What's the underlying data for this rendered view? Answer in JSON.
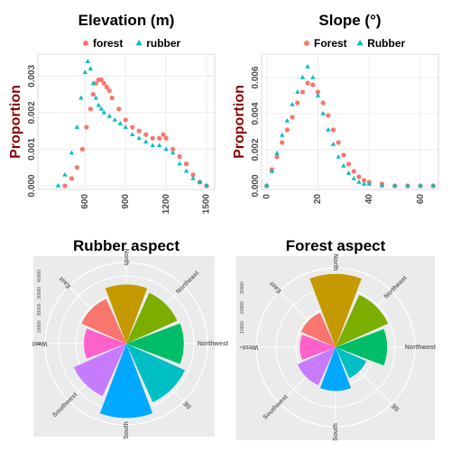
{
  "chart_data": [
    {
      "type": "scatter",
      "title": "Elevation (m)",
      "ylabel": "Proportion",
      "xlabel": "",
      "xlim": [
        250,
        1560
      ],
      "ylim": [
        -0.0001,
        0.0036
      ],
      "xticks": [
        600,
        900,
        1200,
        1500
      ],
      "yticks": [
        0.0,
        0.001,
        0.002,
        0.003
      ],
      "ytick_labels": [
        "0.000",
        "0.001",
        "0.002",
        "0.003"
      ],
      "grid": true,
      "legend": "top",
      "series": [
        {
          "name": "forest",
          "marker": "circle",
          "color": "#f8766d",
          "x": [
            450,
            500,
            540,
            580,
            610,
            640,
            660,
            680,
            700,
            720,
            740,
            760,
            780,
            800,
            850,
            900,
            950,
            1000,
            1050,
            1100,
            1150,
            1180,
            1200,
            1250,
            1300,
            1350,
            1400,
            1450,
            1500
          ],
          "y": [
            0.0,
            0.0002,
            0.0005,
            0.001,
            0.0016,
            0.0021,
            0.0025,
            0.0028,
            0.0029,
            0.0029,
            0.0028,
            0.0027,
            0.0026,
            0.0024,
            0.0021,
            0.0018,
            0.0016,
            0.0015,
            0.0014,
            0.0013,
            0.0013,
            0.0014,
            0.0013,
            0.001,
            0.0008,
            0.0006,
            0.0003,
            0.0001,
            0.0
          ]
        },
        {
          "name": "rubber",
          "marker": "triangle",
          "color": "#00bfc4",
          "x": [
            400,
            450,
            500,
            540,
            570,
            600,
            620,
            640,
            660,
            680,
            700,
            720,
            740,
            780,
            820,
            860,
            900,
            950,
            1000,
            1050,
            1100,
            1150,
            1200,
            1250,
            1300,
            1350,
            1400,
            1450,
            1500
          ],
          "y": [
            0.0,
            0.0003,
            0.0009,
            0.0016,
            0.0024,
            0.0031,
            0.0034,
            0.0032,
            0.0028,
            0.0024,
            0.0022,
            0.0021,
            0.002,
            0.0019,
            0.0018,
            0.0017,
            0.0016,
            0.0014,
            0.0013,
            0.0012,
            0.0011,
            0.0011,
            0.001,
            0.0009,
            0.0006,
            0.0004,
            0.0002,
            0.0001,
            0.0
          ]
        }
      ]
    },
    {
      "type": "scatter",
      "title": "Slope (°)",
      "ylabel": "Proportion",
      "xlabel": "",
      "xlim": [
        -2,
        67
      ],
      "ylim": [
        -0.0002,
        0.0073
      ],
      "xticks": [
        0,
        20,
        40,
        60
      ],
      "yticks": [
        0.0,
        0.002,
        0.004,
        0.006
      ],
      "ytick_labels": [
        "0.000",
        "0.002",
        "0.004",
        "0.006"
      ],
      "grid": true,
      "legend": "top",
      "series": [
        {
          "name": "Forest",
          "marker": "circle",
          "color": "#f8766d",
          "x": [
            0,
            2,
            4,
            6,
            8,
            10,
            12,
            14,
            16,
            18,
            20,
            22,
            24,
            26,
            28,
            30,
            32,
            34,
            36,
            38,
            40,
            45,
            50,
            55,
            60,
            65
          ],
          "y": [
            0.0,
            0.0009,
            0.0016,
            0.0024,
            0.0031,
            0.0038,
            0.0046,
            0.0052,
            0.0057,
            0.0056,
            0.0052,
            0.0046,
            0.0039,
            0.0031,
            0.0024,
            0.0017,
            0.0012,
            0.0008,
            0.0005,
            0.0003,
            0.0002,
            0.0001,
            0.0,
            0.0,
            0.0,
            0.0
          ]
        },
        {
          "name": "Rubber",
          "marker": "triangle",
          "color": "#00bfc4",
          "x": [
            0,
            2,
            4,
            6,
            8,
            10,
            12,
            14,
            16,
            18,
            20,
            22,
            24,
            26,
            28,
            30,
            32,
            34,
            36,
            38,
            40,
            45,
            50,
            55,
            60,
            65
          ],
          "y": [
            0.0,
            0.0008,
            0.0018,
            0.0028,
            0.0036,
            0.0045,
            0.0052,
            0.006,
            0.0066,
            0.006,
            0.005,
            0.004,
            0.0031,
            0.0023,
            0.0016,
            0.0011,
            0.0007,
            0.0004,
            0.0002,
            0.0001,
            0.0001,
            0.0,
            0.0,
            0.0,
            0.0,
            0.0
          ]
        }
      ]
    },
    {
      "type": "bar",
      "subtype": "polar",
      "title": "Rubber aspect",
      "categories": [
        "North",
        "Northeast",
        "Northwest",
        "SE",
        "South",
        "Southwest",
        "West",
        "East"
      ],
      "values": [
        35000,
        33000,
        34000,
        38000,
        44000,
        34000,
        25000,
        29000
      ],
      "colors": [
        "#c49a00",
        "#7cae00",
        "#00be67",
        "#00bfc4",
        "#00a9ff",
        "#c77cff",
        "#ff61cc",
        "#f8766d"
      ],
      "rticks": [
        0,
        10000,
        20000,
        30000,
        40000
      ],
      "rtick_labels": [
        "0",
        "10000",
        "20000",
        "30000",
        "40000"
      ],
      "rlim": [
        0,
        48000
      ],
      "grid": true
    },
    {
      "type": "bar",
      "subtype": "polar",
      "title": "Forest aspect",
      "categories": [
        "North",
        "Northeast",
        "Northwest",
        "SE",
        "South",
        "Southwest",
        "West",
        "East"
      ],
      "values": [
        37000,
        29000,
        26000,
        17000,
        22000,
        21000,
        18000,
        19000
      ],
      "colors": [
        "#c49a00",
        "#7cae00",
        "#00be67",
        "#00bfc4",
        "#00a9ff",
        "#c77cff",
        "#ff61cc",
        "#f8766d"
      ],
      "rticks": [
        0,
        10000,
        20000,
        30000
      ],
      "rtick_labels": [
        "0",
        "10000",
        "20000",
        "30000"
      ],
      "rlim": [
        0,
        40000
      ],
      "grid": true
    }
  ]
}
